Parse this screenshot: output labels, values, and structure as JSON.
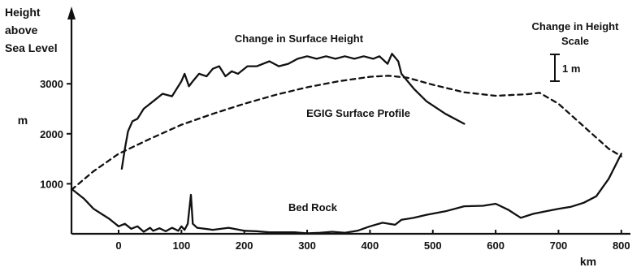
{
  "chart_data": {
    "type": "line",
    "ylabel": [
      "Height",
      "above",
      "Sea Level"
    ],
    "yunit": "m",
    "xunit": "km",
    "x_ticks": [
      "0",
      "100",
      "200",
      "300",
      "400",
      "500",
      "600",
      "700",
      "800"
    ],
    "y_ticks": [
      "1000",
      "2000",
      "3000"
    ],
    "xlim": [
      -75,
      810
    ],
    "ylim": [
      0,
      4200
    ],
    "grid": false,
    "annotations": {
      "surface_change": "Change in Surface Height",
      "egig_profile": "EGIG Surface Profile",
      "bed_rock": "Bed Rock",
      "scale_title": [
        "Change in Height",
        "Scale"
      ],
      "scale_value": "1 m"
    },
    "series": [
      {
        "key": "egig",
        "style": "dashed",
        "x": [
          -75,
          -40,
          0,
          50,
          100,
          150,
          200,
          250,
          300,
          350,
          400,
          430,
          460,
          500,
          550,
          600,
          650,
          670,
          700,
          740,
          780,
          800
        ],
        "y": [
          880,
          1250,
          1600,
          1900,
          2180,
          2400,
          2600,
          2780,
          2930,
          3050,
          3140,
          3160,
          3120,
          2980,
          2830,
          2760,
          2790,
          2820,
          2600,
          2150,
          1700,
          1550
        ]
      },
      {
        "key": "surface_change",
        "style": "solid",
        "x": [
          5,
          10,
          15,
          22,
          30,
          40,
          55,
          70,
          85,
          100,
          105,
          112,
          118,
          128,
          140,
          150,
          160,
          170,
          180,
          190,
          205,
          220,
          240,
          255,
          270,
          285,
          300,
          315,
          330,
          345,
          360,
          375,
          390,
          405,
          415,
          428,
          435,
          445,
          450,
          470,
          490,
          520,
          550
        ],
        "y": [
          1300,
          1700,
          2050,
          2250,
          2300,
          2500,
          2650,
          2800,
          2750,
          3050,
          3200,
          2950,
          3050,
          3200,
          3150,
          3300,
          3350,
          3150,
          3250,
          3200,
          3350,
          3350,
          3450,
          3350,
          3400,
          3500,
          3550,
          3500,
          3550,
          3500,
          3550,
          3500,
          3550,
          3500,
          3550,
          3400,
          3600,
          3450,
          3200,
          2900,
          2650,
          2400,
          2200
        ]
      },
      {
        "key": "bed_rock",
        "style": "solid",
        "x": [
          -75,
          -55,
          -40,
          -25,
          -15,
          0,
          10,
          20,
          30,
          40,
          50,
          55,
          65,
          75,
          85,
          95,
          100,
          105,
          110,
          115,
          118,
          125,
          150,
          175,
          200,
          220,
          240,
          260,
          280,
          300,
          320,
          340,
          360,
          380,
          400,
          420,
          440,
          450,
          470,
          490,
          520,
          550,
          580,
          600,
          620,
          640,
          660,
          680,
          700,
          720,
          740,
          760,
          780,
          800
        ],
        "y": [
          900,
          700,
          500,
          380,
          300,
          150,
          200,
          100,
          150,
          40,
          120,
          60,
          110,
          50,
          120,
          60,
          150,
          80,
          200,
          780,
          200,
          120,
          80,
          120,
          60,
          50,
          30,
          30,
          30,
          10,
          20,
          40,
          20,
          60,
          150,
          220,
          180,
          280,
          320,
          380,
          450,
          550,
          560,
          600,
          480,
          320,
          400,
          450,
          500,
          540,
          620,
          750,
          1100,
          1600
        ]
      }
    ]
  }
}
